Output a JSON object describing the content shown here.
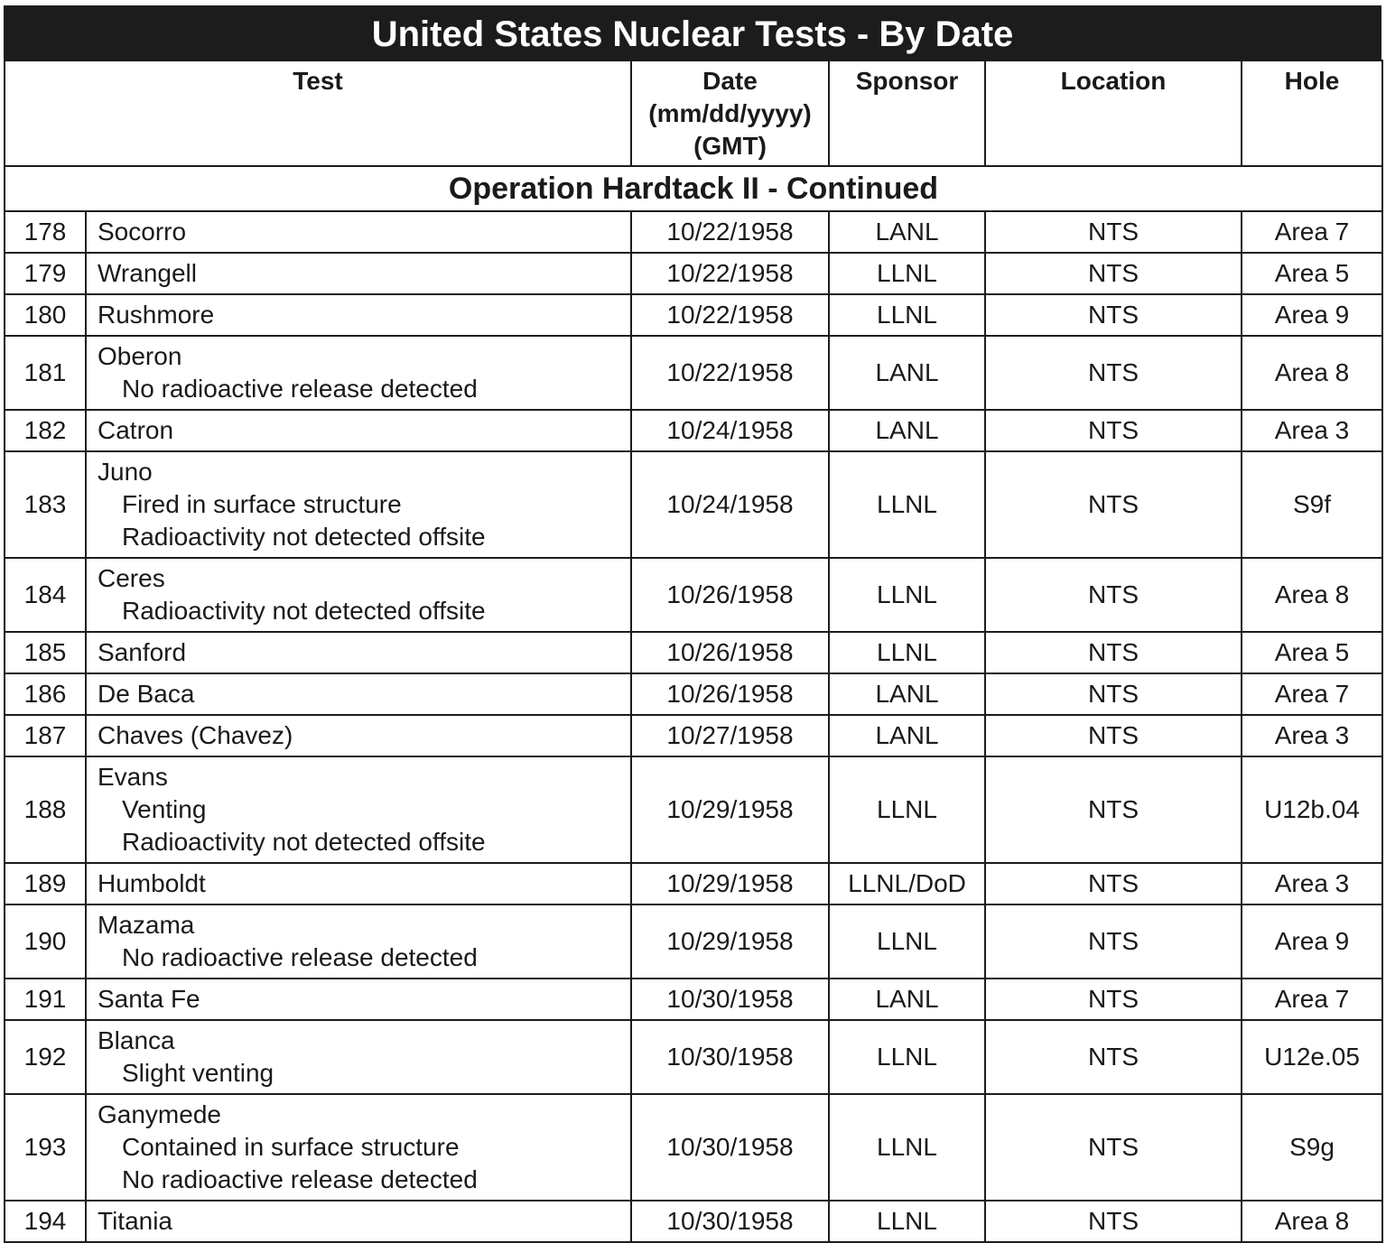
{
  "title": "United States Nuclear Tests - By Date",
  "columns": {
    "test": "Test",
    "date": [
      "Date",
      "(mm/dd/yyyy)",
      "(GMT)"
    ],
    "sponsor": "Sponsor",
    "location": "Location",
    "hole": "Hole"
  },
  "section": "Operation Hardtack II - Continued",
  "rows": [
    {
      "num": "178",
      "name": "Socorro",
      "notes": [],
      "date": "10/22/1958",
      "sponsor": "LANL",
      "location": "NTS",
      "hole": "Area 7"
    },
    {
      "num": "179",
      "name": "Wrangell",
      "notes": [],
      "date": "10/22/1958",
      "sponsor": "LLNL",
      "location": "NTS",
      "hole": "Area 5"
    },
    {
      "num": "180",
      "name": "Rushmore",
      "notes": [],
      "date": "10/22/1958",
      "sponsor": "LLNL",
      "location": "NTS",
      "hole": "Area 9"
    },
    {
      "num": "181",
      "name": "Oberon",
      "notes": [
        "No radioactive release detected"
      ],
      "date": "10/22/1958",
      "sponsor": "LANL",
      "location": "NTS",
      "hole": "Area 8"
    },
    {
      "num": "182",
      "name": "Catron",
      "notes": [],
      "date": "10/24/1958",
      "sponsor": "LANL",
      "location": "NTS",
      "hole": "Area 3"
    },
    {
      "num": "183",
      "name": "Juno",
      "notes": [
        "Fired in surface structure",
        "Radioactivity not detected offsite"
      ],
      "date": "10/24/1958",
      "sponsor": "LLNL",
      "location": "NTS",
      "hole": "S9f"
    },
    {
      "num": "184",
      "name": "Ceres",
      "notes": [
        "Radioactivity not detected offsite"
      ],
      "date": "10/26/1958",
      "sponsor": "LLNL",
      "location": "NTS",
      "hole": "Area 8"
    },
    {
      "num": "185",
      "name": "Sanford",
      "notes": [],
      "date": "10/26/1958",
      "sponsor": "LLNL",
      "location": "NTS",
      "hole": "Area 5"
    },
    {
      "num": "186",
      "name": "De Baca",
      "notes": [],
      "date": "10/26/1958",
      "sponsor": "LANL",
      "location": "NTS",
      "hole": "Area 7"
    },
    {
      "num": "187",
      "name": "Chaves (Chavez)",
      "notes": [],
      "date": "10/27/1958",
      "sponsor": "LANL",
      "location": "NTS",
      "hole": "Area 3"
    },
    {
      "num": "188",
      "name": "Evans",
      "notes": [
        "Venting",
        "Radioactivity not detected offsite"
      ],
      "date": "10/29/1958",
      "sponsor": "LLNL",
      "location": "NTS",
      "hole": "U12b.04"
    },
    {
      "num": "189",
      "name": "Humboldt",
      "notes": [],
      "date": "10/29/1958",
      "sponsor": "LLNL/DoD",
      "location": "NTS",
      "hole": "Area 3"
    },
    {
      "num": "190",
      "name": "Mazama",
      "notes": [
        "No radioactive release detected"
      ],
      "date": "10/29/1958",
      "sponsor": "LLNL",
      "location": "NTS",
      "hole": "Area 9"
    },
    {
      "num": "191",
      "name": "Santa Fe",
      "notes": [],
      "date": "10/30/1958",
      "sponsor": "LANL",
      "location": "NTS",
      "hole": "Area 7"
    },
    {
      "num": "192",
      "name": "Blanca",
      "notes": [
        "Slight venting"
      ],
      "date": "10/30/1958",
      "sponsor": "LLNL",
      "location": "NTS",
      "hole": "U12e.05"
    },
    {
      "num": "193",
      "name": "Ganymede",
      "notes": [
        "Contained in surface structure",
        "No radioactive release detected"
      ],
      "date": "10/30/1958",
      "sponsor": "LLNL",
      "location": "NTS",
      "hole": "S9g"
    },
    {
      "num": "194",
      "name": "Titania",
      "notes": [],
      "date": "10/30/1958",
      "sponsor": "LLNL",
      "location": "NTS",
      "hole": "Area 8"
    }
  ]
}
